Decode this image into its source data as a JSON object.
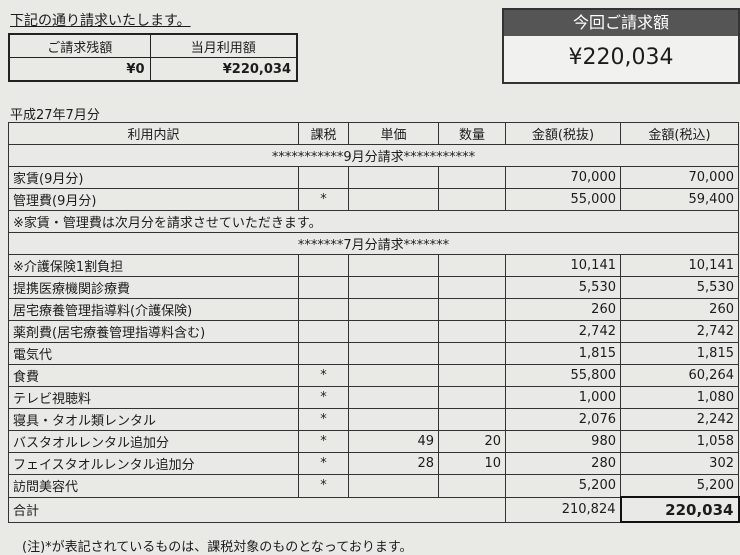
{
  "intro": "下記の通り請求いたします。",
  "summary": {
    "headers": [
      "ご請求残額",
      "当月利用額"
    ],
    "values": [
      "¥0",
      "¥220,034"
    ]
  },
  "total_box": {
    "title": "今回ご請求額",
    "amount": "¥220,034"
  },
  "period": "平成27年7月分",
  "table": {
    "headers": [
      "利用内訳",
      "課税",
      "単価",
      "数量",
      "金額(税抜)",
      "金額(税込)"
    ],
    "section_sep": "***********9月分請求***********",
    "sep_rows": [
      [
        "家賃(9月分)",
        "",
        "",
        "",
        "70,000",
        "70,000"
      ],
      [
        "管理費(9月分)",
        "*",
        "",
        "",
        "55,000",
        "59,400"
      ]
    ],
    "sep_note": "※家賃・管理費は次月分を請求させていただきます。",
    "section_jul": "*******7月分請求*******",
    "jul_rows": [
      [
        "※介護保険1割負担",
        "",
        "",
        "",
        "10,141",
        "10,141"
      ],
      [
        "提携医療機関診療費",
        "",
        "",
        "",
        "5,530",
        "5,530"
      ],
      [
        "居宅療養管理指導料(介護保険)",
        "",
        "",
        "",
        "260",
        "260"
      ],
      [
        "薬剤費(居宅療養管理指導料含む)",
        "",
        "",
        "",
        "2,742",
        "2,742"
      ],
      [
        "電気代",
        "",
        "",
        "",
        "1,815",
        "1,815"
      ],
      [
        "食費",
        "*",
        "",
        "",
        "55,800",
        "60,264"
      ],
      [
        "テレビ視聴料",
        "*",
        "",
        "",
        "1,000",
        "1,080"
      ],
      [
        "寝具・タオル類レンタル",
        "*",
        "",
        "",
        "2,076",
        "2,242"
      ],
      [
        "バスタオルレンタル追加分",
        "*",
        "49",
        "20",
        "980",
        "1,058"
      ],
      [
        "フェイスタオルレンタル追加分",
        "*",
        "28",
        "10",
        "280",
        "302"
      ],
      [
        "訪問美容代",
        "*",
        "",
        "",
        "5,200",
        "5,200"
      ]
    ],
    "total_label": "合計",
    "total_ex_tax": "210,824",
    "total_in_tax": "220,034"
  },
  "footnote": "(注)*が表記されているものは、課税対象のものとなっております。"
}
